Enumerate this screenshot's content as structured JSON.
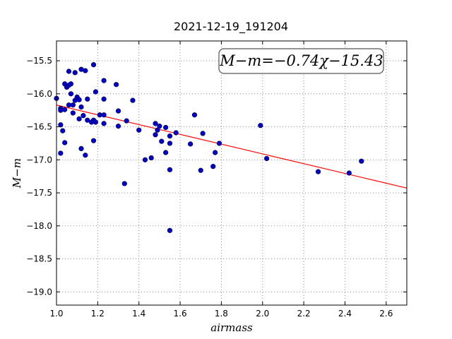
{
  "chart_data": {
    "type": "scatter",
    "title": "2021-12-19_191204",
    "xlabel": "airmass",
    "ylabel": "M−m",
    "xlim": [
      1.0,
      2.7
    ],
    "ylim": [
      -19.2,
      -15.2
    ],
    "xticks": [
      "1.0",
      "1.2",
      "1.4",
      "1.6",
      "1.8",
      "2.0",
      "2.2",
      "2.4",
      "2.6"
    ],
    "xtick_values": [
      1.0,
      1.2,
      1.4,
      1.6,
      1.8,
      2.0,
      2.2,
      2.4,
      2.6
    ],
    "yticks": [
      "−15.5",
      "−16.0",
      "−16.5",
      "−17.0",
      "−17.5",
      "−18.0",
      "−18.5",
      "−19.0"
    ],
    "ytick_values": [
      -15.5,
      -16.0,
      -16.5,
      -17.0,
      -17.5,
      -18.0,
      -18.5,
      -19.0
    ],
    "grid": true,
    "annotation": "M−m=−0.74χ−15.43",
    "annotation_placement": "top-right",
    "fit_line": {
      "slope": -0.74,
      "intercept": -15.43,
      "color": "#ff0000"
    },
    "marker_color": "#0000cc",
    "points": [
      {
        "x": 1.0,
        "y": -16.07
      },
      {
        "x": 1.02,
        "y": -16.22
      },
      {
        "x": 1.02,
        "y": -16.25
      },
      {
        "x": 1.02,
        "y": -16.47
      },
      {
        "x": 1.02,
        "y": -16.9
      },
      {
        "x": 1.03,
        "y": -16.56
      },
      {
        "x": 1.04,
        "y": -16.74
      },
      {
        "x": 1.04,
        "y": -16.24
      },
      {
        "x": 1.04,
        "y": -15.85
      },
      {
        "x": 1.05,
        "y": -15.9
      },
      {
        "x": 1.06,
        "y": -15.87
      },
      {
        "x": 1.06,
        "y": -15.66
      },
      {
        "x": 1.06,
        "y": -16.17
      },
      {
        "x": 1.07,
        "y": -15.85
      },
      {
        "x": 1.07,
        "y": -16.0
      },
      {
        "x": 1.08,
        "y": -16.17
      },
      {
        "x": 1.08,
        "y": -16.29
      },
      {
        "x": 1.09,
        "y": -16.1
      },
      {
        "x": 1.09,
        "y": -15.68
      },
      {
        "x": 1.1,
        "y": -16.05
      },
      {
        "x": 1.11,
        "y": -16.38
      },
      {
        "x": 1.11,
        "y": -16.09
      },
      {
        "x": 1.12,
        "y": -16.2
      },
      {
        "x": 1.12,
        "y": -16.83
      },
      {
        "x": 1.12,
        "y": -15.63
      },
      {
        "x": 1.13,
        "y": -16.33
      },
      {
        "x": 1.14,
        "y": -15.65
      },
      {
        "x": 1.14,
        "y": -16.93
      },
      {
        "x": 1.15,
        "y": -16.08
      },
      {
        "x": 1.15,
        "y": -16.4
      },
      {
        "x": 1.17,
        "y": -16.43
      },
      {
        "x": 1.18,
        "y": -16.71
      },
      {
        "x": 1.18,
        "y": -16.4
      },
      {
        "x": 1.18,
        "y": -15.56
      },
      {
        "x": 1.19,
        "y": -15.97
      },
      {
        "x": 1.19,
        "y": -16.43
      },
      {
        "x": 1.21,
        "y": -16.32
      },
      {
        "x": 1.23,
        "y": -16.32
      },
      {
        "x": 1.23,
        "y": -15.8
      },
      {
        "x": 1.23,
        "y": -16.45
      },
      {
        "x": 1.23,
        "y": -16.08
      },
      {
        "x": 1.29,
        "y": -15.86
      },
      {
        "x": 1.3,
        "y": -16.26
      },
      {
        "x": 1.3,
        "y": -16.49
      },
      {
        "x": 1.33,
        "y": -17.36
      },
      {
        "x": 1.34,
        "y": -16.41
      },
      {
        "x": 1.37,
        "y": -16.1
      },
      {
        "x": 1.4,
        "y": -16.55
      },
      {
        "x": 1.43,
        "y": -17.0
      },
      {
        "x": 1.46,
        "y": -16.97
      },
      {
        "x": 1.48,
        "y": -16.62
      },
      {
        "x": 1.48,
        "y": -16.45
      },
      {
        "x": 1.49,
        "y": -16.55
      },
      {
        "x": 1.5,
        "y": -16.49
      },
      {
        "x": 1.51,
        "y": -16.72
      },
      {
        "x": 1.53,
        "y": -16.51
      },
      {
        "x": 1.53,
        "y": -16.89
      },
      {
        "x": 1.55,
        "y": -16.64
      },
      {
        "x": 1.55,
        "y": -16.75
      },
      {
        "x": 1.55,
        "y": -17.15
      },
      {
        "x": 1.55,
        "y": -18.07
      },
      {
        "x": 1.58,
        "y": -16.59
      },
      {
        "x": 1.65,
        "y": -16.76
      },
      {
        "x": 1.67,
        "y": -16.32
      },
      {
        "x": 1.7,
        "y": -17.16
      },
      {
        "x": 1.71,
        "y": -16.6
      },
      {
        "x": 1.76,
        "y": -17.1
      },
      {
        "x": 1.77,
        "y": -16.89
      },
      {
        "x": 1.79,
        "y": -16.75
      },
      {
        "x": 1.99,
        "y": -16.48
      },
      {
        "x": 2.02,
        "y": -16.98
      },
      {
        "x": 2.27,
        "y": -17.18
      },
      {
        "x": 2.42,
        "y": -17.2
      },
      {
        "x": 2.48,
        "y": -17.02
      }
    ]
  }
}
